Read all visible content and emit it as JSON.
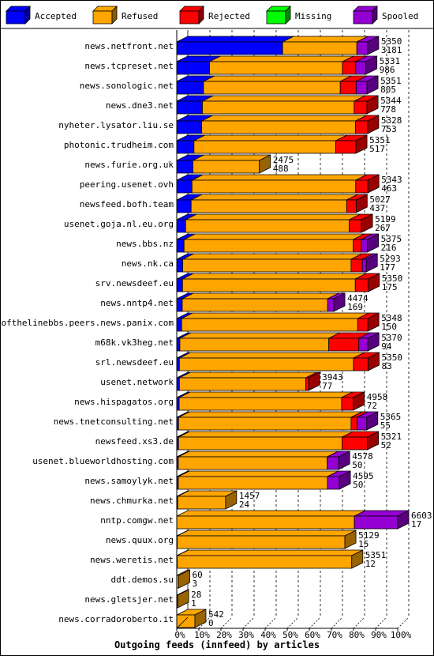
{
  "chart_data": {
    "type": "bar",
    "orientation": "horizontal",
    "stacked": true,
    "title": "Outgoing feeds (innfeed) by articles",
    "xlabel": "",
    "ylabel": "",
    "xlim": [
      0,
      100
    ],
    "x_ticks": [
      "0%",
      "10%",
      "20%",
      "30%",
      "40%",
      "50%",
      "60%",
      "70%",
      "80%",
      "90%",
      "100%"
    ],
    "grid": true,
    "legend_position": "top",
    "legend": [
      {
        "name": "Accepted",
        "color": "#0000ff"
      },
      {
        "name": "Refused",
        "color": "#ffa500"
      },
      {
        "name": "Rejected",
        "color": "#ff0000"
      },
      {
        "name": "Missing",
        "color": "#00ff00"
      },
      {
        "name": "Spooled",
        "color": "#9400d3"
      }
    ],
    "rows": [
      {
        "host": "news.netfront.net",
        "total": "5350",
        "accepted": "3181",
        "segments": [
          47.9,
          33.6,
          0,
          0,
          4.9
        ]
      },
      {
        "host": "news.tcpreset.net",
        "total": "5331",
        "accepted": "986",
        "segments": [
          14.8,
          60.2,
          6,
          0,
          4.6
        ]
      },
      {
        "host": "news.sonologic.net",
        "total": "5351",
        "accepted": "805",
        "segments": [
          12.1,
          61.9,
          7.2,
          0,
          4.9
        ]
      },
      {
        "host": "news.dne3.net",
        "total": "5344",
        "accepted": "778",
        "segments": [
          11.6,
          68.7,
          5.8,
          0,
          0
        ]
      },
      {
        "host": "nyheter.lysator.liu.se",
        "total": "5328",
        "accepted": "753",
        "segments": [
          11.3,
          69.6,
          5.5,
          0,
          0
        ]
      },
      {
        "host": "photonic.trudheim.com",
        "total": "5351",
        "accepted": "517",
        "segments": [
          7.8,
          64.2,
          9.1,
          0,
          0
        ]
      },
      {
        "host": "news.furie.org.uk",
        "total": "2475",
        "accepted": "488",
        "segments": [
          7.3,
          30.1,
          0,
          0,
          0
        ]
      },
      {
        "host": "peering.usenet.ovh",
        "total": "5343",
        "accepted": "463",
        "segments": [
          6.9,
          74.1,
          5.5,
          0,
          0
        ]
      },
      {
        "host": "newsfeed.bofh.team",
        "total": "5027",
        "accepted": "437",
        "segments": [
          6.5,
          70.4,
          4.3,
          0,
          0
        ]
      },
      {
        "host": "usenet.goja.nl.eu.org",
        "total": "5199",
        "accepted": "267",
        "segments": [
          4,
          74.1,
          5.5,
          0,
          0
        ]
      },
      {
        "host": "news.bbs.nz",
        "total": "5375",
        "accepted": "216",
        "segments": [
          3.3,
          76.6,
          3.6,
          0,
          2.8
        ]
      },
      {
        "host": "news.nk.ca",
        "total": "5293",
        "accepted": "177",
        "segments": [
          2.7,
          76.2,
          5.1,
          0,
          1.8
        ]
      },
      {
        "host": "srv.newsdeef.eu",
        "total": "5350",
        "accepted": "175",
        "segments": [
          2.6,
          78.2,
          5.9,
          0,
          0
        ]
      },
      {
        "host": "news.nntp4.net",
        "total": "4474",
        "accepted": "169",
        "segments": [
          2.5,
          65.8,
          0,
          0,
          2.8
        ]
      },
      {
        "host": "endofthelinebbs.peers.news.panix.com",
        "total": "5348",
        "accepted": "150",
        "segments": [
          2.2,
          79.7,
          4.6,
          0,
          0
        ]
      },
      {
        "host": "m68k.vk3heg.net",
        "total": "5370",
        "accepted": "94",
        "segments": [
          1.4,
          67.4,
          13.6,
          0,
          4.1
        ]
      },
      {
        "host": "srl.newsdeef.eu",
        "total": "5350",
        "accepted": "83",
        "segments": [
          1.2,
          78.8,
          6.6,
          0,
          0
        ]
      },
      {
        "host": "usenet.network",
        "total": "3943",
        "accepted": "77",
        "segments": [
          1.2,
          57.2,
          1.3,
          0,
          0
        ]
      },
      {
        "host": "news.hispagatos.org",
        "total": "4958",
        "accepted": "72",
        "segments": [
          1.1,
          73.5,
          5.3,
          0,
          0
        ]
      },
      {
        "host": "news.tnetconsulting.net",
        "total": "5365",
        "accepted": "55",
        "segments": [
          0.8,
          78.1,
          2.7,
          0,
          4.4
        ]
      },
      {
        "host": "newsfeed.xs3.de",
        "total": "5321",
        "accepted": "52",
        "segments": [
          0.8,
          74,
          11.5,
          0,
          0
        ]
      },
      {
        "host": "usenet.blueworldhosting.com",
        "total": "4578",
        "accepted": "50",
        "segments": [
          0.7,
          67.4,
          0,
          0,
          5.2
        ]
      },
      {
        "host": "news.samoylyk.net",
        "total": "4595",
        "accepted": "50",
        "segments": [
          0.7,
          67.5,
          0,
          0,
          5.4
        ]
      },
      {
        "host": "news.chmurka.net",
        "total": "1457",
        "accepted": "24",
        "segments": [
          0.4,
          21.7,
          0,
          0,
          0
        ]
      },
      {
        "host": "nntp.comgw.net",
        "total": "6603",
        "accepted": "17",
        "segments": [
          0,
          80.4,
          0,
          0,
          19.6
        ]
      },
      {
        "host": "news.quux.org",
        "total": "5129",
        "accepted": "15",
        "segments": [
          0.2,
          75.9,
          0,
          0,
          0
        ]
      },
      {
        "host": "news.weretis.net",
        "total": "5351",
        "accepted": "12",
        "segments": [
          0.2,
          79,
          0,
          0,
          0
        ]
      },
      {
        "host": "ddt.demos.su",
        "total": "60",
        "accepted": "3",
        "segments": [
          0,
          0.9,
          0,
          0,
          0
        ]
      },
      {
        "host": "news.gletsjer.net",
        "total": "28",
        "accepted": "1",
        "segments": [
          0,
          0.4,
          0,
          0,
          0
        ]
      },
      {
        "host": "news.corradoroberto.it",
        "total": "542",
        "accepted": "0",
        "segments": [
          0,
          8.2,
          0,
          0,
          0
        ]
      }
    ]
  }
}
